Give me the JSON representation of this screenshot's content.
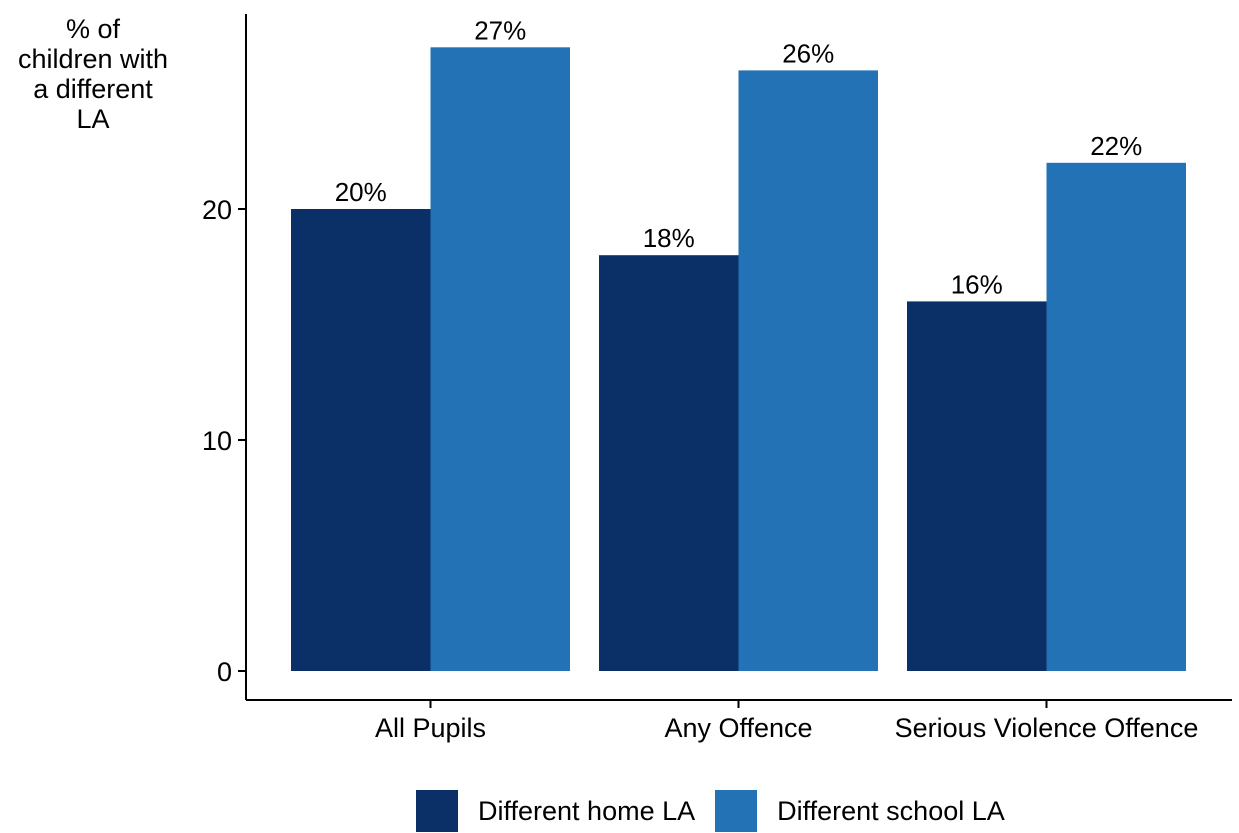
{
  "chart_data": {
    "type": "bar",
    "ylabel_lines": [
      "% of",
      "children with",
      "a different",
      "LA"
    ],
    "categories": [
      "All Pupils",
      "Any Offence",
      "Serious Violence Offence"
    ],
    "series": [
      {
        "name": "Different home LA",
        "color": "#0B3068",
        "values": [
          20,
          18,
          16
        ],
        "labels": [
          "20%",
          "18%",
          "16%"
        ]
      },
      {
        "name": "Different school LA",
        "color": "#2272B5",
        "values": [
          27,
          26,
          22
        ],
        "labels": [
          "27%",
          "26%",
          "22%"
        ]
      }
    ],
    "yticks": [
      0,
      10,
      20
    ],
    "ylim": [
      0,
      28
    ],
    "grid": false,
    "legend_position": "bottom"
  }
}
